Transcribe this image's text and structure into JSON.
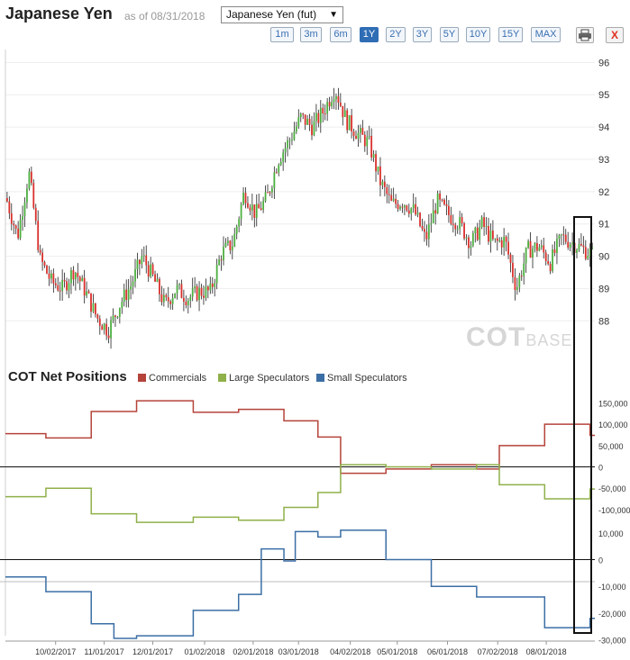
{
  "header": {
    "title": "Japanese Yen",
    "as_of": "as of 08/31/2018",
    "contract_select": "Japanese Yen (fut)",
    "ranges": [
      "1m",
      "3m",
      "6m",
      "1Y",
      "2Y",
      "3Y",
      "5Y",
      "10Y",
      "15Y",
      "MAX"
    ],
    "active_range": "1Y",
    "close_label": "X"
  },
  "watermark": {
    "main": "COT",
    "suffix": "BASE"
  },
  "cot_section": {
    "title": "COT Net Positions",
    "legend": [
      {
        "label": "Commercials",
        "color": "#b5433a"
      },
      {
        "label": "Large Speculators",
        "color": "#8fb04a"
      },
      {
        "label": "Small Speculators",
        "color": "#3b6ea5"
      }
    ]
  },
  "chart_data": [
    {
      "type": "candlestick",
      "title": "",
      "ylim": [
        87.2,
        96.4
      ],
      "y_ticks": [
        "96",
        "95",
        "94",
        "93",
        "92",
        "91",
        "90",
        "89",
        "88"
      ],
      "x_ticks": [
        "10/02/2017",
        "11/01/2017",
        "12/01/2017",
        "01/02/2018",
        "02/01/2018",
        "03/01/2018",
        "04/02/2018",
        "05/01/2018",
        "06/01/2018",
        "07/02/2018",
        "08/01/2018"
      ],
      "up_color": "#4caf3f",
      "down_color": "#d9302c",
      "close_path": [
        [
          "09/01/2017",
          91.8
        ],
        [
          "09/08/2017",
          90.6
        ],
        [
          "09/15/2017",
          92.6
        ],
        [
          "09/22/2017",
          89.9
        ],
        [
          "09/29/2017",
          89.2
        ],
        [
          "10/06/2017",
          89.0
        ],
        [
          "10/13/2017",
          89.6
        ],
        [
          "10/20/2017",
          88.9
        ],
        [
          "10/27/2017",
          88.1
        ],
        [
          "11/03/2017",
          87.7
        ],
        [
          "11/10/2017",
          88.5
        ],
        [
          "11/17/2017",
          89.1
        ],
        [
          "11/24/2017",
          90.0
        ],
        [
          "12/01/2017",
          89.3
        ],
        [
          "12/08/2017",
          88.5
        ],
        [
          "12/15/2017",
          89.0
        ],
        [
          "12/22/2017",
          88.7
        ],
        [
          "12/29/2017",
          88.9
        ],
        [
          "01/05/2018",
          88.9
        ],
        [
          "01/12/2018",
          90.1
        ],
        [
          "01/19/2018",
          90.4
        ],
        [
          "01/26/2018",
          92.0
        ],
        [
          "02/02/2018",
          91.3
        ],
        [
          "02/09/2018",
          91.8
        ],
        [
          "02/16/2018",
          93.0
        ],
        [
          "02/23/2018",
          93.6
        ],
        [
          "03/02/2018",
          94.3
        ],
        [
          "03/09/2018",
          94.0
        ],
        [
          "03/16/2018",
          94.5
        ],
        [
          "03/23/2018",
          95.2
        ],
        [
          "03/30/2018",
          94.2
        ],
        [
          "04/06/2018",
          93.8
        ],
        [
          "04/13/2018",
          93.5
        ],
        [
          "04/20/2018",
          92.3
        ],
        [
          "04/27/2018",
          91.6
        ],
        [
          "05/04/2018",
          91.7
        ],
        [
          "05/11/2018",
          91.4
        ],
        [
          "05/18/2018",
          90.5
        ],
        [
          "05/25/2018",
          91.7
        ],
        [
          "06/01/2018",
          91.3
        ],
        [
          "06/08/2018",
          91.0
        ],
        [
          "06/15/2018",
          90.4
        ],
        [
          "06/22/2018",
          91.0
        ],
        [
          "06/29/2018",
          90.4
        ],
        [
          "07/06/2018",
          90.5
        ],
        [
          "07/13/2018",
          89.0
        ],
        [
          "07/20/2018",
          90.2
        ],
        [
          "07/27/2018",
          90.3
        ],
        [
          "08/03/2018",
          89.8
        ],
        [
          "08/10/2018",
          90.6
        ],
        [
          "08/17/2018",
          90.4
        ],
        [
          "08/24/2018",
          90.2
        ],
        [
          "08/31/2018",
          90.0
        ]
      ]
    },
    {
      "type": "line",
      "title": "COT Net Positions",
      "ylim": [
        -115000,
        170000
      ],
      "y_ticks": [
        "150,000",
        "100,000",
        "50,000",
        "0",
        "-50,000",
        "-100,000"
      ],
      "series": [
        {
          "name": "Commercials",
          "color": "#b5433a",
          "values": [
            [
              "09/05/2017",
              78000
            ],
            [
              "09/26/2017",
              68000
            ],
            [
              "10/24/2017",
              130000
            ],
            [
              "11/21/2017",
              155000
            ],
            [
              "12/26/2017",
              128000
            ],
            [
              "01/23/2018",
              135000
            ],
            [
              "02/20/2018",
              108000
            ],
            [
              "03/13/2018",
              70000
            ],
            [
              "03/27/2018",
              -15000
            ],
            [
              "04/24/2018",
              -5000
            ],
            [
              "05/22/2018",
              5000
            ],
            [
              "06/19/2018",
              -5000
            ],
            [
              "07/03/2018",
              50000
            ],
            [
              "07/31/2018",
              100000
            ],
            [
              "08/28/2018",
              74000
            ]
          ]
        },
        {
          "name": "Large Speculators",
          "color": "#8fb04a",
          "values": [
            [
              "09/05/2017",
              -70000
            ],
            [
              "09/26/2017",
              -50000
            ],
            [
              "10/24/2017",
              -110000
            ],
            [
              "11/21/2017",
              -130000
            ],
            [
              "12/26/2017",
              -118000
            ],
            [
              "01/23/2018",
              -125000
            ],
            [
              "02/20/2018",
              -95000
            ],
            [
              "03/13/2018",
              -60000
            ],
            [
              "03/27/2018",
              5000
            ],
            [
              "04/24/2018",
              0
            ],
            [
              "05/22/2018",
              -5000
            ],
            [
              "06/19/2018",
              5000
            ],
            [
              "07/03/2018",
              -42000
            ],
            [
              "07/31/2018",
              -75000
            ],
            [
              "08/28/2018",
              -52000
            ]
          ]
        }
      ]
    },
    {
      "type": "line",
      "ylim": [
        -30500,
        14000
      ],
      "y_ticks": [
        "10,000",
        "0",
        "-10,000",
        "-20,000",
        "-30,000"
      ],
      "series": [
        {
          "name": "Small Speculators",
          "color": "#3b6ea5",
          "values": [
            [
              "09/05/2017",
              -6500
            ],
            [
              "09/26/2017",
              -12000
            ],
            [
              "10/24/2017",
              -24000
            ],
            [
              "11/07/2017",
              -29500
            ],
            [
              "11/21/2017",
              -28500
            ],
            [
              "12/26/2017",
              -19000
            ],
            [
              "01/23/2018",
              -13000
            ],
            [
              "02/06/2018",
              4000
            ],
            [
              "02/20/2018",
              -500
            ],
            [
              "02/27/2018",
              10500
            ],
            [
              "03/13/2018",
              8500
            ],
            [
              "03/27/2018",
              11000
            ],
            [
              "04/24/2018",
              0
            ],
            [
              "05/22/2018",
              -10000
            ],
            [
              "06/19/2018",
              -14000
            ],
            [
              "07/03/2018",
              -14000
            ],
            [
              "07/31/2018",
              -25500
            ],
            [
              "08/28/2018",
              -22000
            ]
          ]
        }
      ]
    }
  ]
}
